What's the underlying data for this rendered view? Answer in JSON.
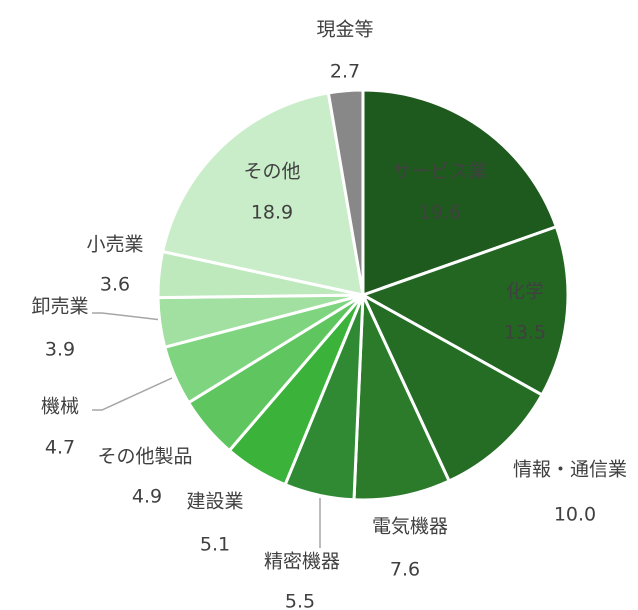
{
  "chart_data": {
    "type": "pie",
    "categories": [
      "サービス業",
      "化学",
      "情報・通信業",
      "電気機器",
      "精密機器",
      "建設業",
      "その他製品",
      "機械",
      "卸売業",
      "小売業",
      "その他",
      "現金等"
    ],
    "values": [
      19.6,
      13.5,
      10.0,
      7.6,
      5.5,
      5.1,
      4.9,
      4.7,
      3.9,
      3.6,
      18.9,
      2.7
    ],
    "value_labels": [
      "19.6",
      "13.5",
      "10.0",
      "7.6",
      "5.5",
      "5.1",
      "4.9",
      "4.7",
      "3.9",
      "3.6",
      "18.9",
      "2.7"
    ],
    "colors": [
      "#1e5a1e",
      "#226622",
      "#256d25",
      "#2b7b2b",
      "#2f8a33",
      "#3bb33b",
      "#5fc65f",
      "#7fd57f",
      "#a1e0a1",
      "#bde9bd",
      "#c9edc9",
      "#888888"
    ]
  }
}
